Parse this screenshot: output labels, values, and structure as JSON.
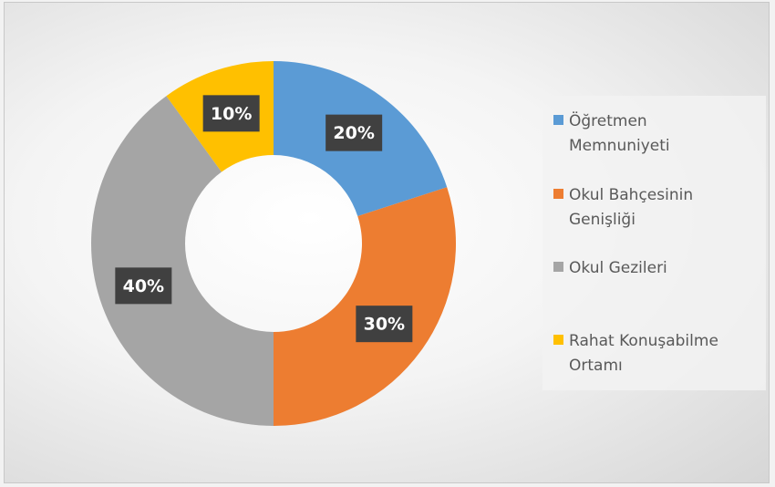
{
  "chart_data": {
    "type": "donut",
    "categories": [
      "Öğretmen Memnuniyeti",
      "Okul Bahçesinin Genişliği",
      "Okul Gezileri",
      "Rahat Konuşabilme Ortamı"
    ],
    "values": [
      20,
      30,
      40,
      10
    ],
    "value_labels": [
      "20%",
      "30%",
      "40%",
      "10%"
    ],
    "colors": [
      "#5b9bd5",
      "#ed7d31",
      "#a5a5a5",
      "#ffc000"
    ],
    "legend": "right"
  }
}
